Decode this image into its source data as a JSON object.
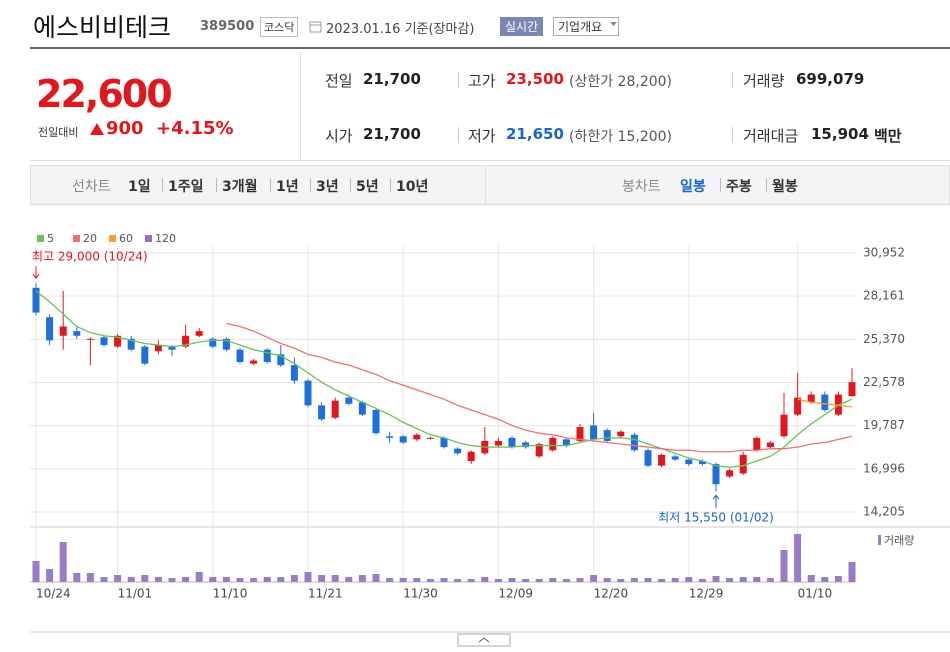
{
  "header": {
    "name": "에스비비테크",
    "code": "389500",
    "market": "코스닥",
    "date": "2023.01.16 기준(장마감)",
    "realtime": "실시간",
    "overview": "기업개요"
  },
  "quote": {
    "price": "22,600",
    "change_label": "전일대비",
    "change": "900",
    "change_rate": "+4.15%",
    "items": [
      {
        "label": "전일",
        "value": "21,700"
      },
      {
        "label": "고가",
        "value": "23,500",
        "sub": "(상한가 28,200)",
        "color": "#e0181e"
      },
      {
        "label": "거래량",
        "value": "699,079"
      },
      {
        "label": "시가",
        "value": "21,700"
      },
      {
        "label": "저가",
        "value": "21,650",
        "sub": "(하한가 15,200)",
        "color": "#1a64c8"
      },
      {
        "label": "거래대금",
        "value": "15,904",
        "unit": "백만"
      }
    ]
  },
  "tabs": {
    "line_label": "선차트",
    "line_items": [
      "1일",
      "1주일",
      "3개월",
      "1년",
      "3년",
      "5년",
      "10년"
    ],
    "candle_label": "봉차트",
    "candle_items": [
      "일봉",
      "주봉",
      "월봉"
    ],
    "selected": 0
  },
  "chart_data": {
    "type": "candlestick",
    "categories": [
      "10/24",
      null,
      null,
      null,
      null,
      null,
      "11/01",
      null,
      null,
      null,
      null,
      null,
      null,
      "11/10",
      null,
      null,
      null,
      null,
      null,
      null,
      "11/21",
      null,
      null,
      null,
      null,
      null,
      null,
      "11/30",
      null,
      null,
      null,
      null,
      null,
      null,
      "12/09",
      null,
      null,
      null,
      null,
      null,
      null,
      "12/20",
      null,
      null,
      null,
      null,
      null,
      null,
      "12/29",
      null,
      null,
      null,
      null,
      null,
      null,
      null,
      "01/10",
      null,
      null,
      null,
      null
    ],
    "open": [
      28700,
      26800,
      25600,
      25900,
      25400,
      25500,
      24900,
      25400,
      24900,
      24600,
      24900,
      24900,
      25600,
      25400,
      25400,
      24700,
      23800,
      24700,
      24400,
      23700,
      22700,
      21100,
      20300,
      21600,
      21300,
      20800,
      19100,
      19100,
      18900,
      19000,
      19000,
      18300,
      17500,
      18000,
      18500,
      19000,
      18700,
      17800,
      18200,
      18900,
      18800,
      19800,
      19500,
      19100,
      19200,
      18200,
      17200,
      17800,
      17600,
      17500,
      17300,
      16500,
      16700,
      18200,
      18400,
      19100,
      20500,
      21300,
      21800,
      20500,
      21700
    ],
    "high": [
      29000,
      27000,
      28500,
      26200,
      25500,
      25600,
      25700,
      25600,
      25000,
      25300,
      25000,
      26300,
      26100,
      25500,
      25500,
      24800,
      24100,
      24800,
      25000,
      24200,
      22800,
      21300,
      21600,
      21800,
      21400,
      20900,
      19400,
      19200,
      19300,
      19100,
      19100,
      18400,
      18200,
      19700,
      19000,
      19100,
      18800,
      18700,
      19100,
      19000,
      19900,
      20600,
      19600,
      19500,
      19300,
      18300,
      18000,
      17900,
      17700,
      17600,
      17400,
      17000,
      18100,
      19100,
      18800,
      21900,
      23200,
      22000,
      22000,
      22000,
      23500
    ],
    "low": [
      26900,
      25000,
      24700,
      25400,
      23700,
      24900,
      24800,
      24600,
      23700,
      24400,
      24300,
      24800,
      25500,
      24800,
      24600,
      23800,
      23700,
      23800,
      23600,
      22500,
      21000,
      20100,
      20200,
      21100,
      20400,
      19200,
      18700,
      18600,
      18800,
      18900,
      18300,
      17900,
      17300,
      17900,
      18400,
      18300,
      18300,
      17700,
      18100,
      18400,
      18700,
      18800,
      18700,
      19000,
      18100,
      17100,
      17100,
      17500,
      17200,
      17200,
      15550,
      16400,
      16600,
      18100,
      18300,
      19000,
      20400,
      21200,
      20700,
      20400,
      21650
    ],
    "close": [
      27100,
      25300,
      26200,
      25600,
      25400,
      25000,
      25600,
      24700,
      23800,
      25000,
      24700,
      25600,
      25900,
      24900,
      24700,
      23900,
      24000,
      23900,
      23700,
      22700,
      21100,
      20200,
      21400,
      21200,
      20500,
      19300,
      19000,
      18700,
      19200,
      19000,
      18400,
      18000,
      18100,
      18800,
      18800,
      18400,
      18400,
      18600,
      19000,
      18500,
      19700,
      18900,
      18800,
      19400,
      18200,
      17200,
      17900,
      17600,
      17300,
      17300,
      16000,
      16900,
      17900,
      19000,
      18700,
      20500,
      21600,
      21800,
      20800,
      21800,
      22600
    ],
    "up_color": "#e0181e",
    "down_color": "#1e6fd9",
    "ylim": [
      14205,
      30952
    ],
    "yticks": [
      {
        "value": 14205,
        "label": "14,205"
      },
      {
        "value": 16996,
        "label": "16,996"
      },
      {
        "value": 19787,
        "label": "19,787"
      },
      {
        "value": 22578,
        "label": "22,578"
      },
      {
        "value": 25370,
        "label": "25,370"
      },
      {
        "value": 28161,
        "label": "28,161"
      },
      {
        "value": 30952,
        "label": "30,952"
      }
    ],
    "grid": true,
    "high_label": "최고 29,000 (10/24)",
    "low_label": "최저 15,550 (01/02)",
    "series": [
      {
        "name": "5",
        "color": "#6cbf5a",
        "values": [
          28500,
          27800,
          27000,
          26200,
          25800,
          25600,
          25500,
          25300,
          25100,
          25000,
          24900,
          25000,
          25200,
          25300,
          25300,
          25000,
          24700,
          24500,
          24300,
          23800,
          23200,
          22600,
          22100,
          21700,
          21300,
          20900,
          20500,
          20000,
          19600,
          19200,
          19000,
          18700,
          18500,
          18400,
          18400,
          18400,
          18500,
          18500,
          18500,
          18500,
          18700,
          18900,
          19000,
          19000,
          18900,
          18600,
          18300,
          18000,
          17700,
          17500,
          17200,
          17100,
          17200,
          17500,
          17800,
          18400,
          19200,
          19900,
          20500,
          21100,
          21500
        ]
      },
      {
        "name": "20",
        "color": "#f07070",
        "values": [
          null,
          null,
          null,
          null,
          null,
          null,
          null,
          null,
          null,
          null,
          null,
          null,
          null,
          null,
          26400,
          26200,
          25900,
          25500,
          25100,
          24800,
          24400,
          24200,
          23900,
          23700,
          23400,
          23100,
          22700,
          22400,
          22100,
          21800,
          21500,
          21100,
          20800,
          20500,
          20200,
          19800,
          19500,
          19300,
          19200,
          19000,
          18900,
          18800,
          18700,
          18600,
          18500,
          18400,
          18300,
          18200,
          18200,
          18100,
          18100,
          18100,
          18200,
          18200,
          18300,
          18300,
          18400,
          18600,
          18700,
          18900,
          19100
        ]
      },
      {
        "name": "60",
        "color": "#f5a030",
        "values": [
          null,
          null,
          null,
          null,
          null,
          null,
          null,
          null,
          null,
          null,
          null,
          null,
          null,
          null,
          null,
          null,
          null,
          null,
          null,
          null,
          null,
          null,
          null,
          null,
          null,
          null,
          null,
          null,
          null,
          null,
          null,
          null,
          null,
          null,
          null,
          null,
          null,
          null,
          null,
          null,
          null,
          null,
          null,
          null,
          null,
          null,
          null,
          null,
          null,
          null,
          null,
          null,
          null,
          null,
          null,
          null,
          21500,
          21300,
          21200,
          21100,
          21000
        ]
      },
      {
        "name": "120",
        "color": "#9b6dc8",
        "values": [
          null,
          null,
          null,
          null,
          null,
          null,
          null,
          null,
          null,
          null,
          null,
          null,
          null,
          null,
          null,
          null,
          null,
          null,
          null,
          null,
          null,
          null,
          null,
          null,
          null,
          null,
          null,
          null,
          null,
          null,
          null,
          null,
          null,
          null,
          null,
          null,
          null,
          null,
          null,
          null,
          null,
          null,
          null,
          null,
          null,
          null,
          null,
          null,
          null,
          null,
          null,
          null,
          null,
          null,
          null,
          null,
          null,
          null,
          null,
          null,
          null
        ]
      }
    ],
    "volume": {
      "name": "거래량",
      "color": "#9a7cc6",
      "ylim": [
        0,
        1750000
      ],
      "values": [
        735000,
        455000,
        1400000,
        315000,
        315000,
        175000,
        245000,
        175000,
        245000,
        175000,
        140000,
        175000,
        350000,
        175000,
        175000,
        140000,
        140000,
        175000,
        175000,
        245000,
        350000,
        245000,
        245000,
        175000,
        245000,
        280000,
        140000,
        140000,
        140000,
        105000,
        140000,
        105000,
        105000,
        175000,
        105000,
        140000,
        105000,
        105000,
        140000,
        105000,
        140000,
        245000,
        140000,
        105000,
        140000,
        140000,
        105000,
        140000,
        175000,
        105000,
        210000,
        140000,
        175000,
        175000,
        140000,
        1120000,
        1680000,
        245000,
        175000,
        210000,
        699079
      ]
    }
  }
}
